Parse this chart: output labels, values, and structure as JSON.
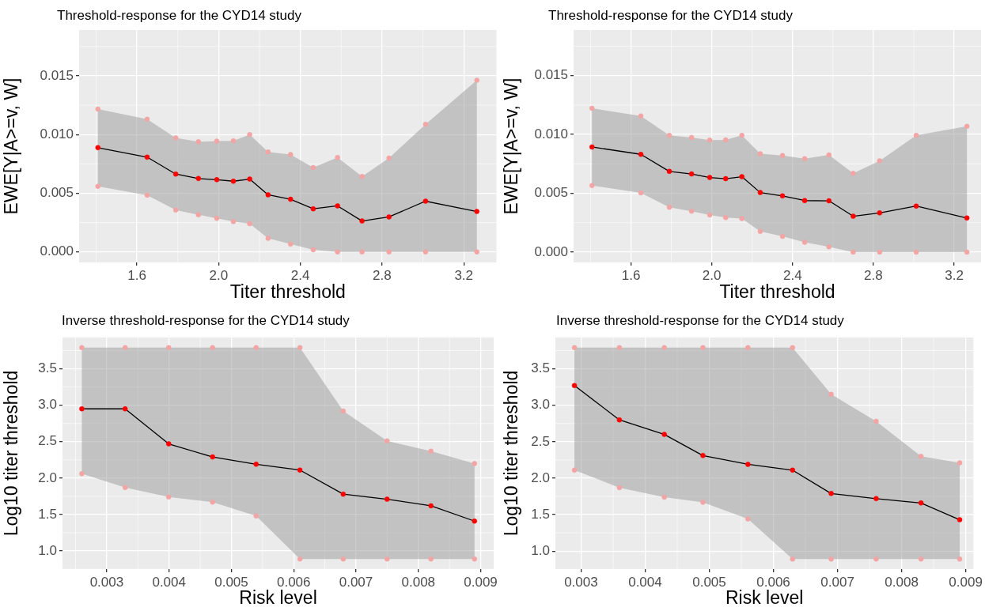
{
  "chart_data": [
    {
      "type": "line",
      "title": "Threshold-response for the CYD14 study",
      "xlabel": "Titer threshold",
      "ylabel": "EWE[Y|A>=v, W]",
      "xlim": [
        1.317,
        3.36
      ],
      "xticks": [
        1.6,
        {
          "value": 2,
          "label": "2.0"
        },
        2.4,
        2.8,
        3.2
      ],
      "ylim": [
        -0.0009,
        0.0189
      ],
      "yticks": [
        {
          "value": 0,
          "label": "0.000"
        },
        0.005,
        {
          "value": 0.01,
          "label": "0.010"
        },
        0.015
      ],
      "grid": true,
      "x": [
        1.409,
        1.65,
        1.79,
        1.901,
        1.991,
        2.072,
        2.152,
        2.242,
        2.352,
        2.463,
        2.582,
        2.702,
        2.834,
        3.013,
        3.264
      ],
      "series": [
        {
          "color": "#000000",
          "marker": "none",
          "values": [
            0.00888,
            0.00807,
            0.00663,
            0.00625,
            0.00615,
            0.00602,
            0.0062,
            0.00486,
            0.00448,
            0.00367,
            0.00392,
            0.00263,
            0.00298,
            0.00432,
            0.00344
          ],
          "lower": [
            0.00559,
            0.00483,
            0.00357,
            0.00316,
            0.00286,
            0.00258,
            0.0024,
            0.00116,
            0.00066,
            0.00018,
            0,
            0,
            0,
            0,
            0
          ],
          "upper": [
            0.01216,
            0.0113,
            0.00971,
            0.00938,
            0.00943,
            0.00946,
            0.00999,
            0.00852,
            0.0083,
            0.00718,
            0.00804,
            0.00642,
            0.00799,
            0.01087,
            0.01462
          ]
        },
        {
          "type": "scatter",
          "marker": "circle",
          "color": "#ff0000",
          "values": [
            0.00888,
            0.00807,
            0.00663,
            0.00625,
            0.00615,
            0.00602,
            0.0062,
            0.00486,
            0.00448,
            0.00367,
            0.00392,
            0.00263,
            0.00298,
            0.00432,
            0.00344
          ]
        },
        {
          "type": "scatter",
          "marker": "circle",
          "color": "#f3a5a5",
          "values": [
            0.01216,
            0.0113,
            0.00971,
            0.00938,
            0.00943,
            0.00946,
            0.00999,
            0.00852,
            0.0083,
            0.00718,
            0.00804,
            0.00642,
            0.00799,
            0.01087,
            0.01462
          ]
        },
        {
          "type": "scatter",
          "marker": "circle",
          "color": "#f3a5a5",
          "values": [
            0.00559,
            0.00483,
            0.00357,
            0.00316,
            0.00286,
            0.00258,
            0.0024,
            0.00116,
            0.00066,
            0.00018,
            0,
            0,
            0,
            0,
            0
          ]
        }
      ]
    },
    {
      "type": "line",
      "title": "Threshold-response for the CYD14 study",
      "xlabel": "Titer threshold",
      "ylabel": "EWE[Y|A>=v, W]",
      "xlim": [
        1.316,
        3.333
      ],
      "xticks": [
        1.6,
        {
          "value": 2,
          "label": "2.0"
        },
        2.4,
        2.8,
        3.2
      ],
      "ylim": [
        -0.00088,
        0.01888
      ],
      "yticks": [
        {
          "value": 0,
          "label": "0.000"
        },
        0.005,
        {
          "value": 0.01,
          "label": "0.010"
        },
        0.015
      ],
      "grid": true,
      "x": [
        1.407,
        1.649,
        1.79,
        1.9,
        1.99,
        2.069,
        2.149,
        2.24,
        2.35,
        2.46,
        2.58,
        2.7,
        2.831,
        3.012,
        3.263
      ],
      "series": [
        {
          "color": "#000000",
          "marker": "none",
          "values": [
            0.00894,
            0.00831,
            0.00686,
            0.00664,
            0.00634,
            0.00624,
            0.00641,
            0.00506,
            0.00478,
            0.00438,
            0.00436,
            0.00305,
            0.00333,
            0.00391,
            0.0029
          ],
          "lower": [
            0.00566,
            0.00503,
            0.00381,
            0.00348,
            0.00316,
            0.00293,
            0.00285,
            0.00175,
            0.00133,
            0.00083,
            0.00045,
            0,
            0,
            0,
            0
          ],
          "upper": [
            0.01222,
            0.01157,
            0.00992,
            0.00974,
            0.00952,
            0.00954,
            0.00992,
            0.00836,
            0.00821,
            0.00794,
            0.00826,
            0.00669,
            0.00776,
            0.00992,
            0.01069
          ]
        },
        {
          "type": "scatter",
          "marker": "circle",
          "color": "#ff0000",
          "values": [
            0.00894,
            0.00831,
            0.00686,
            0.00664,
            0.00634,
            0.00624,
            0.00641,
            0.00506,
            0.00478,
            0.00438,
            0.00436,
            0.00305,
            0.00333,
            0.00391,
            0.0029
          ]
        },
        {
          "type": "scatter",
          "marker": "circle",
          "color": "#f3a5a5",
          "values": [
            0.01222,
            0.01157,
            0.00992,
            0.00974,
            0.00952,
            0.00954,
            0.00992,
            0.00836,
            0.00821,
            0.00794,
            0.00826,
            0.00669,
            0.00776,
            0.00992,
            0.01069
          ]
        },
        {
          "type": "scatter",
          "marker": "circle",
          "color": "#f3a5a5",
          "values": [
            0.00566,
            0.00503,
            0.00381,
            0.00348,
            0.00316,
            0.00293,
            0.00285,
            0.00175,
            0.00133,
            0.00083,
            0.00045,
            0,
            0,
            0,
            0
          ]
        }
      ]
    },
    {
      "type": "line",
      "title": "Inverse threshold-response for the CYD14 study",
      "xlabel": "Risk level",
      "ylabel": "Log10 titer threshold",
      "xlim": [
        0.00229,
        0.00921
      ],
      "xticks": [
        0.003,
        0.004,
        0.005,
        0.006,
        0.007,
        0.008,
        0.009
      ],
      "ylim": [
        0.751,
        3.929
      ],
      "yticks": [
        {
          "value": 1,
          "label": "1.0"
        },
        1.5,
        {
          "value": 2,
          "label": "2.0"
        },
        2.5,
        {
          "value": 3,
          "label": "3.0"
        },
        3.5
      ],
      "grid": true,
      "x": [
        0.0026,
        0.003295,
        0.003994,
        0.004698,
        0.005397,
        0.0061,
        0.006795,
        0.007498,
        0.008202,
        0.008901
      ],
      "series": [
        {
          "color": "#000000",
          "marker": "none",
          "values": [
            2.95,
            2.95,
            2.47,
            2.29,
            2.19,
            2.11,
            1.78,
            1.71,
            1.62,
            1.41
          ],
          "lower": [
            2.06,
            1.87,
            1.74,
            1.67,
            1.48,
            0.89,
            0.89,
            0.89,
            0.89,
            0.89
          ],
          "upper": [
            3.79,
            3.79,
            3.79,
            3.79,
            3.79,
            3.79,
            2.92,
            2.51,
            2.37,
            2.2
          ]
        },
        {
          "type": "scatter",
          "marker": "circle",
          "color": "#ff0000",
          "values": [
            2.95,
            2.95,
            2.47,
            2.29,
            2.19,
            2.11,
            1.78,
            1.71,
            1.62,
            1.41
          ]
        },
        {
          "type": "scatter",
          "marker": "circle",
          "color": "#f3a5a5",
          "values": [
            3.79,
            3.79,
            3.79,
            3.79,
            3.79,
            3.79,
            2.92,
            2.51,
            2.37,
            2.2
          ]
        },
        {
          "type": "scatter",
          "marker": "circle",
          "color": "#f3a5a5",
          "values": [
            2.06,
            1.87,
            1.74,
            1.67,
            1.48,
            0.89,
            0.89,
            0.89,
            0.89,
            0.89
          ]
        }
      ]
    },
    {
      "type": "line",
      "title": "Inverse threshold-response for the CYD14 study",
      "xlabel": "Risk level",
      "ylabel": "Log10 titer threshold",
      "xlim": [
        0.0026,
        0.00912
      ],
      "xticks": [
        0.003,
        0.004,
        0.005,
        0.006,
        0.007,
        0.008,
        0.009
      ],
      "ylim": [
        0.753,
        3.929
      ],
      "yticks": [
        {
          "value": 1,
          "label": "1.0"
        },
        1.5,
        {
          "value": 2,
          "label": "2.0"
        },
        2.5,
        {
          "value": 3,
          "label": "3.0"
        },
        3.5
      ],
      "grid": true,
      "x": [
        0.002897,
        0.003598,
        0.004299,
        0.004901,
        0.005603,
        0.006299,
        0.006901,
        0.007603,
        0.008303,
        0.008906
      ],
      "series": [
        {
          "color": "#000000",
          "marker": "none",
          "values": [
            3.27,
            2.8,
            2.6,
            2.31,
            2.19,
            2.11,
            1.79,
            1.72,
            1.66,
            1.43
          ],
          "lower": [
            2.11,
            1.87,
            1.74,
            1.67,
            1.44,
            0.89,
            0.89,
            0.89,
            0.89,
            0.89
          ],
          "upper": [
            3.79,
            3.79,
            3.79,
            3.79,
            3.79,
            3.79,
            3.15,
            2.78,
            2.3,
            2.21
          ]
        },
        {
          "type": "scatter",
          "marker": "circle",
          "color": "#ff0000",
          "values": [
            3.27,
            2.8,
            2.6,
            2.31,
            2.19,
            2.11,
            1.79,
            1.72,
            1.66,
            1.43
          ]
        },
        {
          "type": "scatter",
          "marker": "circle",
          "color": "#f3a5a5",
          "values": [
            3.79,
            3.79,
            3.79,
            3.79,
            3.79,
            3.79,
            3.15,
            2.78,
            2.3,
            2.21
          ]
        },
        {
          "type": "scatter",
          "marker": "circle",
          "color": "#f3a5a5",
          "values": [
            2.11,
            1.87,
            1.74,
            1.67,
            1.44,
            0.89,
            0.89,
            0.89,
            0.89,
            0.89
          ]
        }
      ]
    }
  ]
}
